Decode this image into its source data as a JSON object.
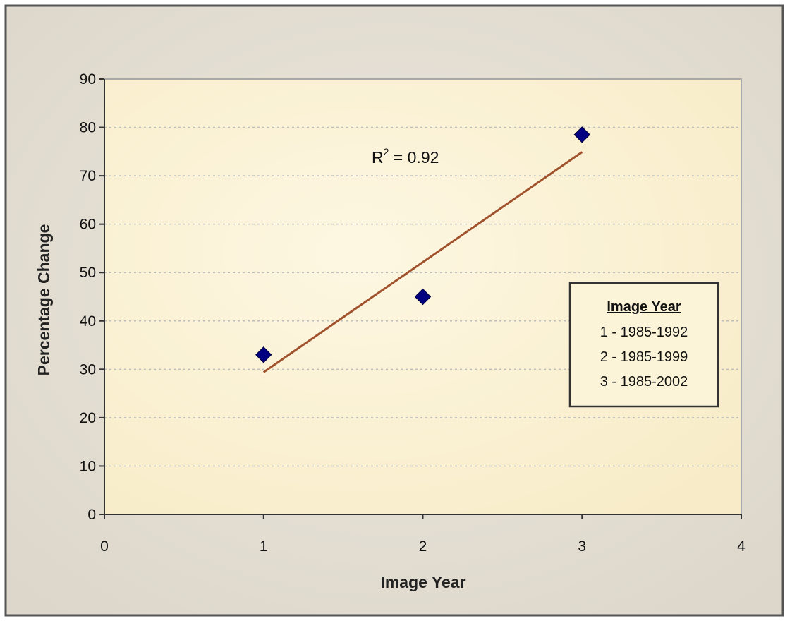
{
  "chart_data": {
    "type": "scatter",
    "title": "",
    "xlabel": "Image Year",
    "ylabel": "Percentage Change",
    "xlim": [
      0,
      4
    ],
    "ylim": [
      0,
      90
    ],
    "x_ticks": [
      0,
      1,
      2,
      3,
      4
    ],
    "y_ticks": [
      0,
      10,
      20,
      30,
      40,
      50,
      60,
      70,
      80,
      90
    ],
    "grid": "horizontal-dotted",
    "series": [
      {
        "points": [
          {
            "x": 1,
            "y": 33
          },
          {
            "x": 2,
            "y": 45
          },
          {
            "x": 3,
            "y": 78.5
          }
        ],
        "marker": "diamond",
        "color": "#000080"
      }
    ],
    "trendline": {
      "type": "linear",
      "start": {
        "x": 1,
        "y": 29.4
      },
      "end": {
        "x": 3,
        "y": 74.9
      },
      "color": "#a0522d"
    },
    "annotation": {
      "base": "R",
      "superscript": "2",
      "rest": " = 0.92"
    },
    "legend": {
      "placement": "right",
      "title": "Image Year",
      "entries": [
        "1 - 1985-1992",
        "2 - 1985-1999",
        "3 - 1985-2002"
      ]
    },
    "colors": {
      "plot_background": "#fcf4d8",
      "outer_background": "#e4dfd4",
      "gridline": "#bdbdbd"
    }
  }
}
